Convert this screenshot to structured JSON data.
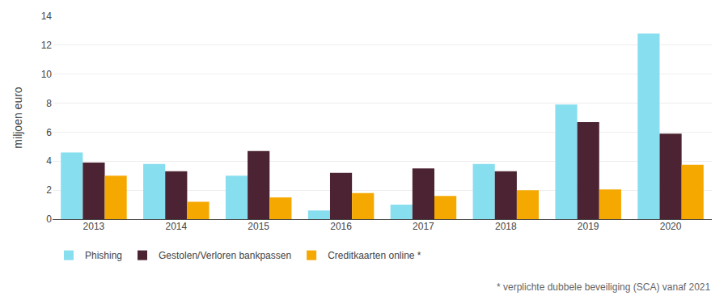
{
  "chart_data": {
    "type": "bar",
    "categories": [
      "2013",
      "2014",
      "2015",
      "2016",
      "2017",
      "2018",
      "2019",
      "2020"
    ],
    "series": [
      {
        "name": "Phishing",
        "color": "#87DEEF",
        "values": [
          4.6,
          3.8,
          3.0,
          0.6,
          1.0,
          3.8,
          7.9,
          12.8
        ]
      },
      {
        "name": "Gestolen/Verloren bankpassen",
        "color": "#4B2332",
        "values": [
          3.9,
          3.3,
          4.7,
          3.2,
          3.5,
          3.3,
          6.7,
          5.9
        ]
      },
      {
        "name": "Creditkaarten online *",
        "color": "#F5A800",
        "values": [
          3.0,
          1.2,
          1.5,
          1.8,
          1.6,
          2.0,
          2.05,
          3.75
        ]
      }
    ],
    "ylabel": "miljoen euro",
    "ylim": [
      0,
      14
    ],
    "yticks": [
      0,
      2,
      4,
      6,
      8,
      10,
      12,
      14
    ],
    "grid": true,
    "legend": "bottom left",
    "annotations": [
      "* verplichte dubbele beveiliging (SCA) vanaf 2021"
    ]
  }
}
